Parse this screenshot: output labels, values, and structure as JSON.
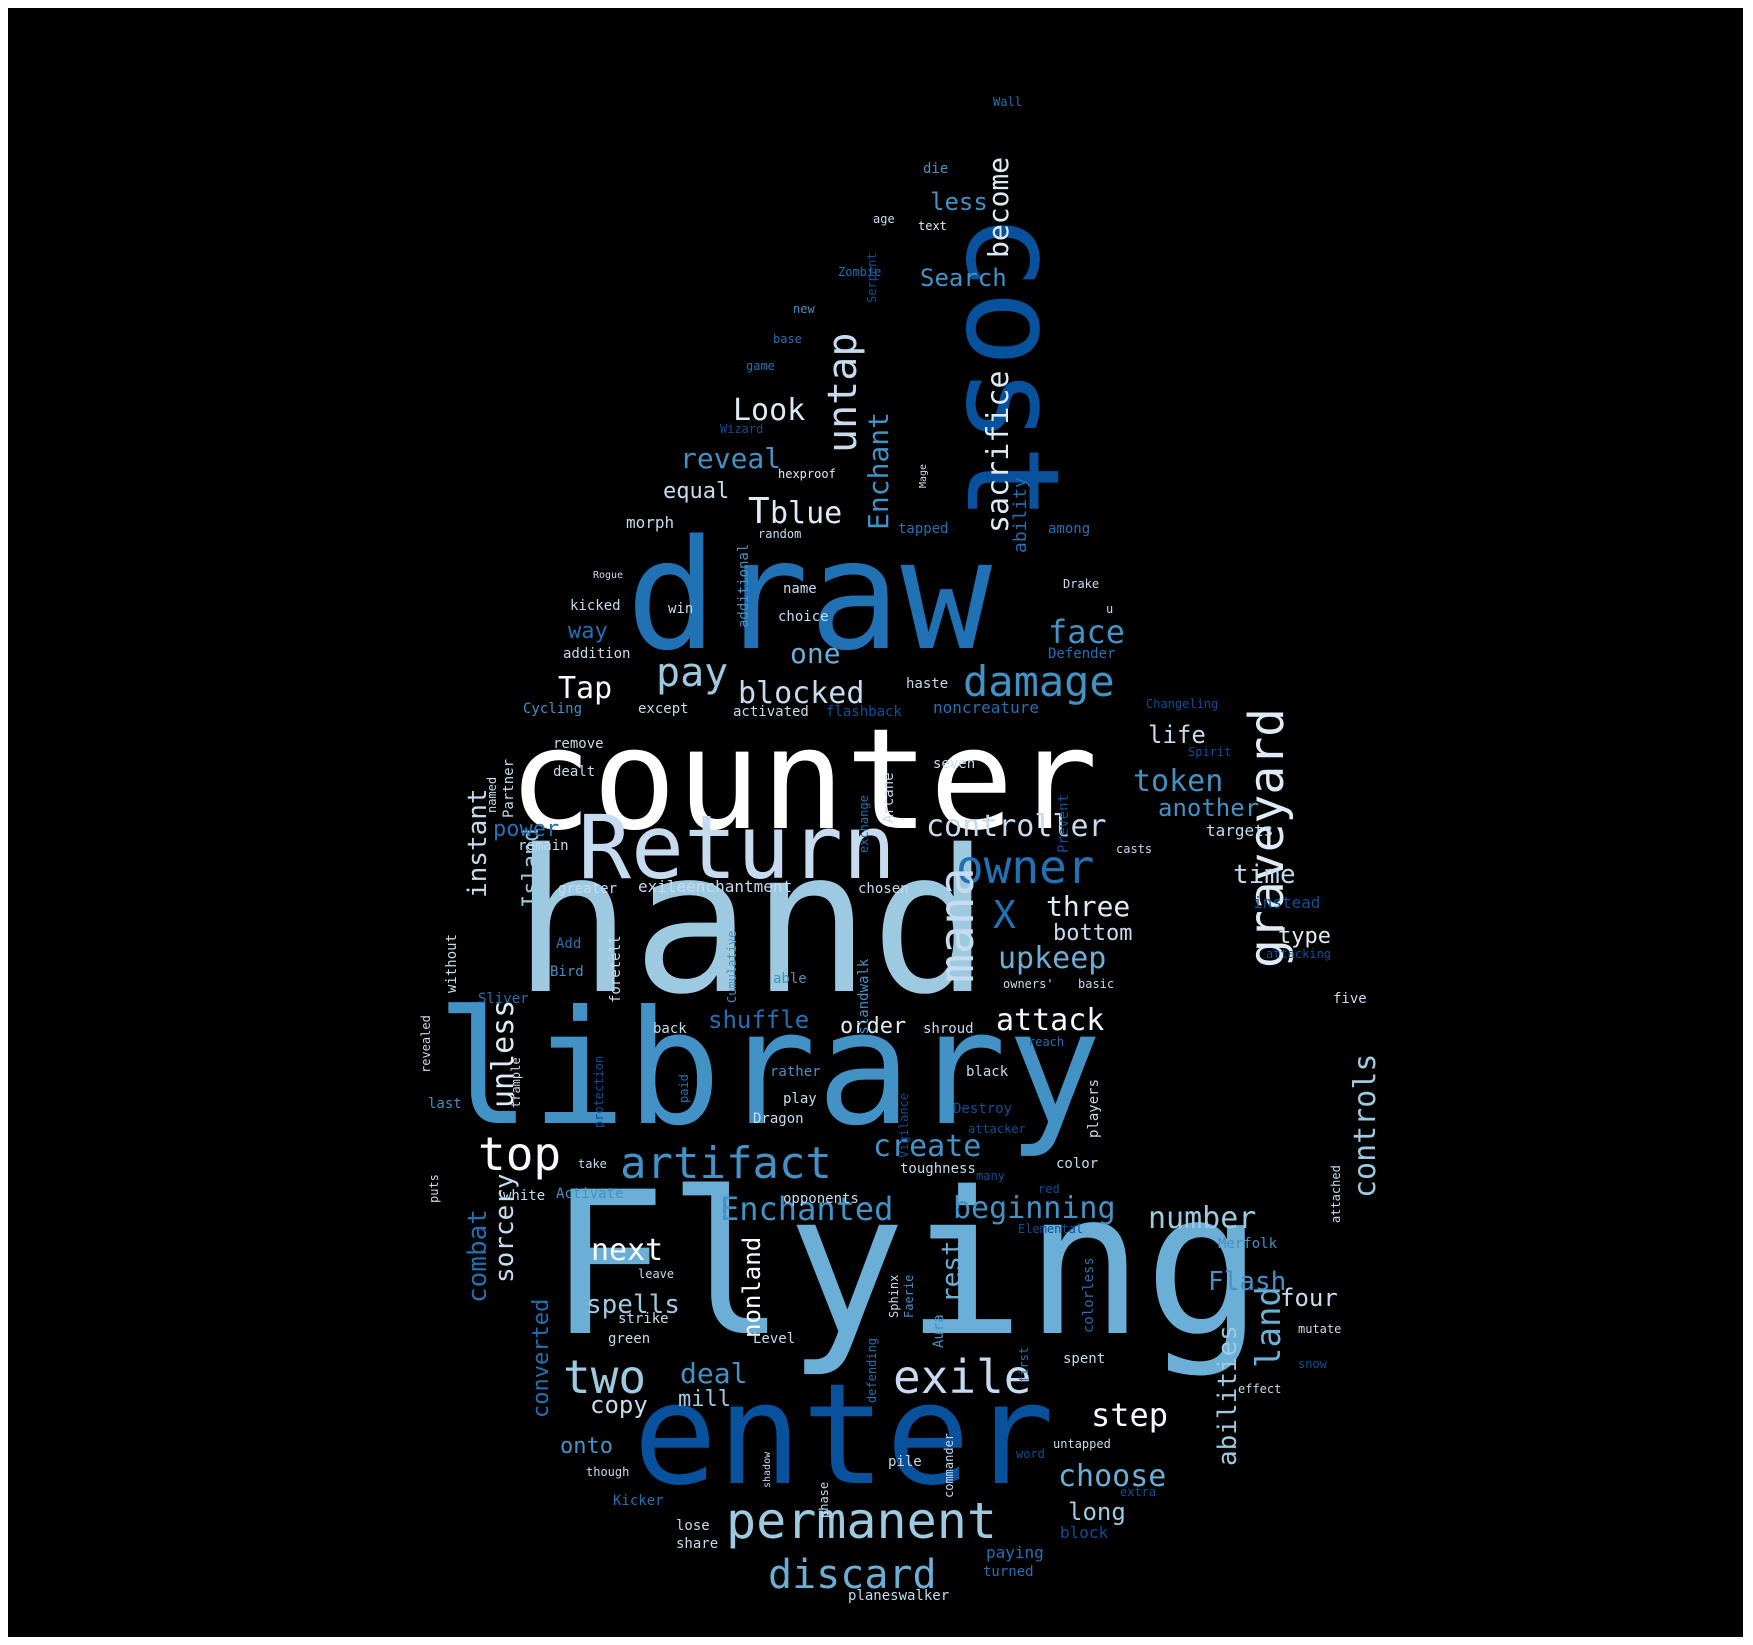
{
  "background": "#000000",
  "palette": [
    "#08306b",
    "#08519c",
    "#2171b5",
    "#4292c6",
    "#6baed6",
    "#9ecae1",
    "#c6dbef",
    "#deebf7",
    "#f7fbff"
  ],
  "words": [
    "Flying",
    "hand",
    "library",
    "counter",
    "draw",
    "enter",
    "cost",
    "Return",
    "artifact",
    "graveyard",
    "permanent",
    "exile",
    "owner",
    "mana",
    "untap",
    "discard",
    "two",
    "damage",
    "top",
    "sacrifice",
    "Enchanted",
    "controls",
    "beginning",
    "controller",
    "create",
    "unless",
    "pay",
    "Enchant",
    "blocked",
    "choose",
    "token",
    "number",
    "next",
    "abilities",
    "upkeep",
    "land",
    "become",
    "spells",
    "instant",
    "sorcery",
    "deal",
    "face",
    "step",
    "attack",
    "three",
    "another",
    "time",
    "reveal",
    "Look",
    "blue",
    "Flash",
    "combat",
    "nonland",
    "Search",
    "Tap",
    "one",
    "shuffle",
    "rest",
    "copy",
    "converted",
    "less",
    "long",
    "life",
    "bottom",
    "type",
    "X",
    "Island",
    "power",
    "four",
    "mill",
    "order",
    "onto",
    "way",
    "equal",
    "ability",
    "noncreature",
    "T",
    "exileenchantment",
    "targets",
    "instead",
    "die",
    "text",
    "age",
    "Zombie",
    "Wall",
    "Serpent",
    "new",
    "base",
    "game",
    "Wizard",
    "hexproof",
    "Mage",
    "tapped",
    "among",
    "morph",
    "random",
    "additional",
    "Rogue",
    "kicked",
    "win",
    "name",
    "choice",
    "Drake",
    "u",
    "addition",
    "Defender",
    "haste",
    "Cycling",
    "except",
    "activated",
    "flashback",
    "Changeling",
    "remove",
    "dealt",
    "seven",
    "Spirit",
    "Partner",
    "named",
    "exchange",
    "Arcane",
    "Prevent",
    "remain",
    "greater",
    "chosen",
    "casts",
    "without",
    "Add",
    "foretell",
    "Cumulative",
    "Islandwalk",
    "attacking",
    "Bird",
    "able",
    "owners'",
    "basic",
    "Sliver",
    "five",
    "revealed",
    "trample",
    "protection",
    "back",
    "shroud",
    "reach",
    "last",
    "paid",
    "rather",
    "black",
    "play",
    "Vigilance",
    "Dragon",
    "Destroy",
    "attacker",
    "players",
    "puts",
    "take",
    "toughness",
    "color",
    "white",
    "Activate",
    "many",
    "red",
    "opponents",
    "Elemental",
    "attached",
    "Merfolk",
    "leave",
    "Sphinx",
    "Faerie",
    "colorless",
    "strike",
    "green",
    "Aura",
    "defending",
    "mutate",
    "Level",
    "spent",
    "first",
    "effect",
    "snow",
    "shadow",
    "phase",
    "untapped",
    "though",
    "pile",
    "commander",
    "word",
    "extra",
    "Kicker",
    "lose",
    "block",
    "share",
    "paying",
    "turned",
    "planeswalker"
  ]
}
